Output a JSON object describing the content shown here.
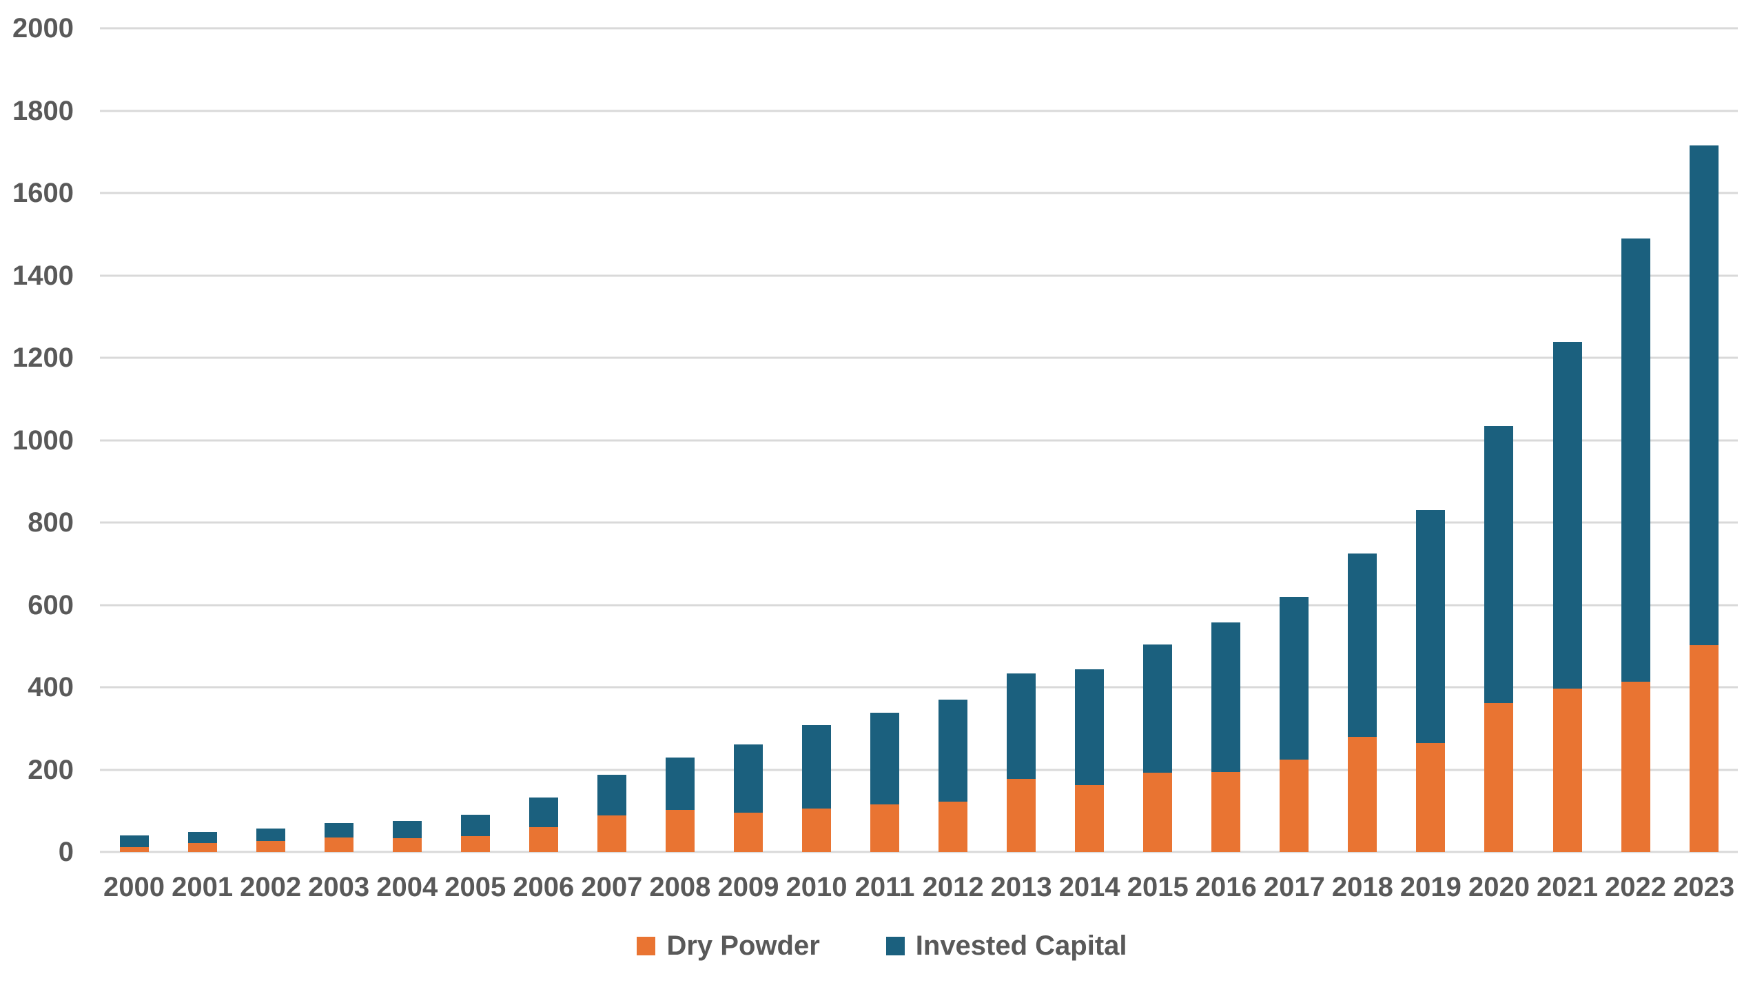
{
  "page": {
    "background": "#FFFFFF"
  },
  "colors": {
    "dry_powder": "#E97432",
    "invested_capital": "#1B607E",
    "gridline": "#D9D9D9",
    "axis_label": "#595959"
  },
  "chart_data": {
    "type": "bar",
    "stacked": true,
    "title": "",
    "xlabel": "",
    "ylabel": "",
    "grid": true,
    "legend_position": "bottom",
    "ylim": [
      0,
      2000
    ],
    "y_ticks": [
      "0",
      "200",
      "400",
      "600",
      "800",
      "1000",
      "1200",
      "1400",
      "1600",
      "1800",
      "2000"
    ],
    "y_tick_values": [
      0,
      200,
      400,
      600,
      800,
      1000,
      1200,
      1400,
      1600,
      1800,
      2000
    ],
    "categories": [
      "2000",
      "2001",
      "2002",
      "2003",
      "2004",
      "2005",
      "2006",
      "2007",
      "2008",
      "2009",
      "2010",
      "2011",
      "2012",
      "2013",
      "2014",
      "2015",
      "2016",
      "2017",
      "2018",
      "2019",
      "2020",
      "2021",
      "2022",
      "2023"
    ],
    "series": [
      {
        "name": "Dry Powder",
        "color": "#E97432",
        "values": [
          12,
          21,
          26,
          35,
          33,
          38,
          60,
          88,
          102,
          96,
          106,
          116,
          122,
          178,
          162,
          192,
          195,
          225,
          279,
          264,
          361,
          396,
          414,
          502
        ]
      },
      {
        "name": "Invested Capital",
        "color": "#1B607E",
        "values": [
          28,
          28,
          31,
          35,
          42,
          52,
          72,
          99,
          128,
          165,
          202,
          222,
          248,
          256,
          281,
          311,
          362,
          395,
          445,
          566,
          674,
          842,
          1076,
          1213
        ]
      }
    ],
    "totals": [
      40,
      49,
      57,
      70,
      75,
      90,
      132,
      187,
      230,
      261,
      308,
      338,
      370,
      434,
      443,
      503,
      557,
      620,
      724,
      830,
      1035,
      1238,
      1490,
      1715
    ]
  }
}
